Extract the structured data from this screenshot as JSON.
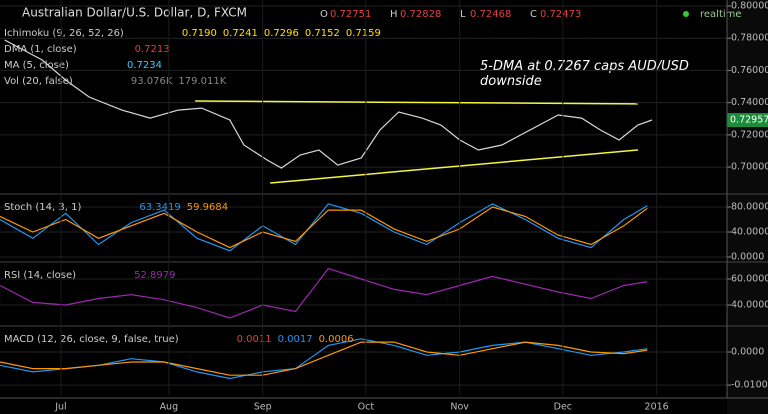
{
  "chart_data": [
    {
      "type": "line",
      "title": "Australian Dollar/U.S. Dollar, D, FXCM",
      "ohlc": [
        {
          "label": "O",
          "value": "0.72751"
        },
        {
          "label": "H",
          "value": "0.72828"
        },
        {
          "label": "L",
          "value": "0.72468"
        },
        {
          "label": "C",
          "value": "0.72473"
        }
      ],
      "realtime": "realtime",
      "legends": [
        {
          "label": "Ichimoku (9, 26, 52, 26)",
          "values": [
            "0.7190",
            "0.7241",
            "0.7296",
            "0.7152",
            "0.7159"
          ]
        },
        {
          "label": "DMA (1, close)",
          "values": [
            "0.7213"
          ]
        },
        {
          "label": "MA (5, close)",
          "values": [
            "0.7234"
          ]
        },
        {
          "label": "Vol (20, false)",
          "values": [
            "93.076K",
            "179.011K"
          ]
        }
      ],
      "annotation": "5-DMA at 0.7267 caps AUD/USD downside",
      "last_price_label": "0.72957",
      "xlim": [
        0,
        155
      ],
      "ylim": [
        0.6839,
        0.80373
      ],
      "yticks": [
        {
          "value": 0.8,
          "label": "0.80000"
        },
        {
          "value": 0.78,
          "label": "0.78000"
        },
        {
          "value": 0.76,
          "label": "0.76000"
        },
        {
          "value": 0.74,
          "label": "0.74000"
        },
        {
          "value": 0.72,
          "label": "0.72000"
        },
        {
          "value": 0.7,
          "label": "0.70000"
        }
      ],
      "series": [
        {
          "color": "#d8d8d8",
          "x": [
            1,
            9,
            14,
            19,
            26,
            32,
            38,
            43,
            49,
            52,
            57,
            60,
            64,
            68,
            72,
            77,
            81,
            85,
            90,
            94,
            98,
            102,
            107,
            111,
            115,
            119,
            124,
            128,
            132,
            136,
            139
          ],
          "values": [
            0.7789,
            0.7665,
            0.754,
            0.7435,
            0.7354,
            0.7304,
            0.7354,
            0.7366,
            0.7292,
            0.7137,
            0.7043,
            0.6994,
            0.7075,
            0.7106,
            0.7012,
            0.7056,
            0.723,
            0.7342,
            0.7304,
            0.7261,
            0.7168,
            0.7106,
            0.7137,
            0.7199,
            0.7261,
            0.7323,
            0.7304,
            0.723,
            0.7168,
            0.7261,
            0.7292
          ]
        }
      ],
      "trendlines": [
        {
          "color": "#f5f540",
          "x": [
            41.6,
            136
          ],
          "values": [
            0.741,
            0.7392
          ]
        },
        {
          "color": "#f5f540",
          "x": [
            57.6,
            136
          ],
          "values": [
            0.6901,
            0.7106
          ]
        }
      ]
    },
    {
      "type": "line",
      "legends": [
        {
          "label": "Stoch (14, 3, 1)",
          "values": [
            "63.3419",
            "59.9684"
          ]
        }
      ],
      "xlim": [
        0,
        155
      ],
      "ylim": [
        -8,
        99.2
      ],
      "yticks": [
        {
          "value": 80,
          "label": "80.0000"
        },
        {
          "value": 40,
          "label": "40.0000"
        },
        {
          "value": 0,
          "label": "0.0000"
        }
      ],
      "x": [
        0,
        7,
        14,
        21,
        28,
        35,
        42,
        49,
        56,
        63,
        70,
        77,
        84,
        91,
        98,
        105,
        112,
        119,
        126,
        133,
        138
      ],
      "series": [
        {
          "color": "#2196f3",
          "values": [
            60,
            30,
            70,
            20,
            55,
            75,
            30,
            10,
            50,
            20,
            85,
            70,
            40,
            20,
            55,
            85,
            60,
            30,
            15,
            60,
            82
          ]
        },
        {
          "color": "#ff9800",
          "values": [
            65,
            40,
            60,
            30,
            50,
            70,
            40,
            15,
            40,
            25,
            75,
            75,
            45,
            25,
            45,
            80,
            65,
            35,
            20,
            50,
            78
          ]
        }
      ]
    },
    {
      "type": "line",
      "legends": [
        {
          "label": "RSI (14, close)",
          "values": [
            "52.8979"
          ]
        }
      ],
      "xlim": [
        0,
        155
      ],
      "ylim": [
        24.6,
        72.3
      ],
      "yticks": [
        {
          "value": 60,
          "label": "60.0000"
        },
        {
          "value": 40,
          "label": "40.0000"
        }
      ],
      "x": [
        0,
        7,
        14,
        21,
        28,
        35,
        42,
        49,
        56,
        63,
        70,
        77,
        84,
        91,
        98,
        105,
        112,
        119,
        126,
        133,
        138
      ],
      "series": [
        {
          "color": "#9c27b0",
          "values": [
            55,
            42,
            40,
            45,
            48,
            44,
            38,
            30,
            40,
            35,
            68,
            60,
            52,
            48,
            55,
            62,
            56,
            50,
            45,
            55,
            58
          ]
        }
      ]
    },
    {
      "type": "line",
      "legends": [
        {
          "label": "MACD (12, 26, close, 9, false, true)",
          "values": [
            "0.0011",
            "0.0017",
            "0.0006"
          ]
        }
      ],
      "xlim": [
        0,
        155
      ],
      "ylim": [
        -0.013,
        0.00758
      ],
      "yticks": [
        {
          "value": 0,
          "label": "0.0000"
        },
        {
          "value": -0.01,
          "label": "-0.0100"
        }
      ],
      "xticks": [
        {
          "value": 13,
          "label": "Jul"
        },
        {
          "value": 36,
          "label": "Aug"
        },
        {
          "value": 56,
          "label": "Sep"
        },
        {
          "value": 78,
          "label": "Oct"
        },
        {
          "value": 98,
          "label": "Nov"
        },
        {
          "value": 120,
          "label": "Dec"
        },
        {
          "value": 140,
          "label": "2016"
        }
      ],
      "x": [
        0,
        7,
        14,
        21,
        28,
        35,
        42,
        49,
        56,
        63,
        70,
        77,
        84,
        91,
        98,
        105,
        112,
        119,
        126,
        133,
        138
      ],
      "series": [
        {
          "color": "#2196f3",
          "values": [
            -0.004,
            -0.006,
            -0.005,
            -0.004,
            -0.002,
            -0.003,
            -0.006,
            -0.008,
            -0.006,
            -0.005,
            0.002,
            0.004,
            0.002,
            -0.001,
            0,
            0.002,
            0.003,
            0.001,
            -0.001,
            0,
            0.001
          ]
        },
        {
          "color": "#ff9800",
          "values": [
            -0.003,
            -0.005,
            -0.005,
            -0.004,
            -0.003,
            -0.003,
            -0.005,
            -0.007,
            -0.007,
            -0.005,
            -0.001,
            0.003,
            0.003,
            0,
            -0.001,
            0.001,
            0.003,
            0.002,
            0,
            -0.0005,
            0.0006
          ]
        }
      ]
    }
  ]
}
